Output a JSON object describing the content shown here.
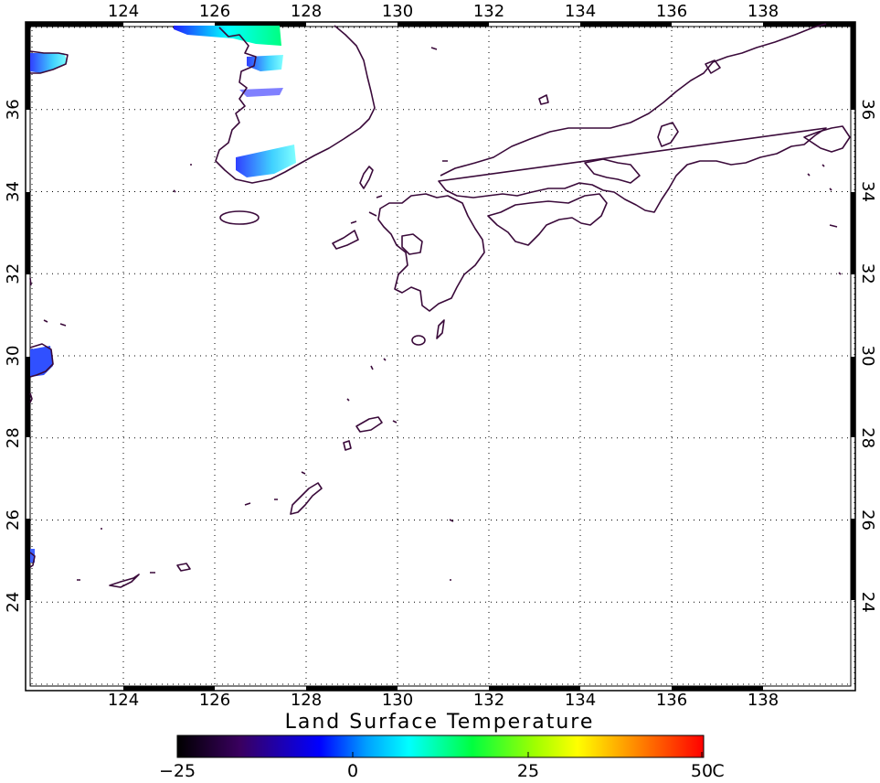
{
  "map": {
    "lon_range": [
      122,
      140
    ],
    "lat_range": [
      22,
      38
    ],
    "lon_ticks": [
      "124",
      "126",
      "128",
      "130",
      "132",
      "134",
      "136",
      "138"
    ],
    "lat_ticks": [
      "24",
      "26",
      "28",
      "30",
      "32",
      "34",
      "36"
    ],
    "coast_color": "#3a0a3a",
    "grid": "dotted"
  },
  "legend": {
    "title": "Land Surface Temperature",
    "labels": [
      "−25",
      "0",
      "25",
      "50"
    ],
    "unit": "C",
    "min": -25,
    "max": 50,
    "colors": [
      "#000000",
      "#3a0060",
      "#0000ff",
      "#00e5ff",
      "#00ff60",
      "#7fff00",
      "#ffff00",
      "#ff8000",
      "#ff0000"
    ]
  }
}
